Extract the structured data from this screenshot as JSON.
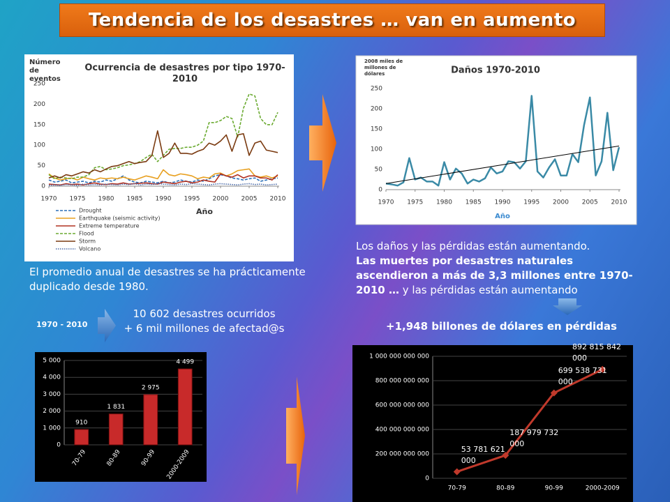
{
  "title": "Tendencia de los desastres … van en aumento",
  "texts": {
    "average": "El promedio anual de desastres se ha prácticamente duplicado desde 1980.",
    "period": "1970 - 2010",
    "count_line1": "10 602 desastres ocurridos",
    "count_line2": "+ 6 mil millones de afectad@s",
    "damages_line1": "Los daños y las pérdidas están aumentando.",
    "damages_bold": "Las muertes por desastres naturales ascendieron a más de 3,3 millones entre 1970-2010 …",
    "damages_tail": " y las pérdidas están aumentando",
    "losses": "+1,948 billones de dólares en pérdidas"
  },
  "chart_data": [
    {
      "type": "line",
      "title": "Ocurrencia de desastres por tipo 1970-2010",
      "y_label": "Número de eventos",
      "x_label": "Año",
      "x": [
        1970,
        1971,
        1972,
        1973,
        1974,
        1975,
        1976,
        1977,
        1978,
        1979,
        1980,
        1981,
        1982,
        1983,
        1984,
        1985,
        1986,
        1987,
        1988,
        1989,
        1990,
        1991,
        1992,
        1993,
        1994,
        1995,
        1996,
        1997,
        1998,
        1999,
        2000,
        2001,
        2002,
        2003,
        2004,
        2005,
        2006,
        2007,
        2008,
        2009,
        2010
      ],
      "xlim": [
        1970,
        2010
      ],
      "xticks": [
        1970,
        1975,
        1980,
        1985,
        1990,
        1995,
        2000,
        2005,
        2010
      ],
      "ylim": [
        0,
        250
      ],
      "yticks": [
        0,
        50,
        100,
        150,
        200,
        250
      ],
      "grid": false,
      "series": [
        {
          "name": "Drought",
          "color": "#2a6fb8",
          "style": "dashed",
          "values": [
            15,
            10,
            12,
            15,
            8,
            10,
            12,
            8,
            12,
            10,
            15,
            12,
            18,
            25,
            15,
            10,
            8,
            12,
            10,
            8,
            12,
            8,
            10,
            15,
            12,
            10,
            15,
            12,
            18,
            25,
            28,
            25,
            20,
            18,
            15,
            18,
            20,
            12,
            15,
            18,
            20
          ]
        },
        {
          "name": "Earthquake (seismic activity)",
          "color": "#e8a020",
          "style": "solid",
          "values": [
            30,
            20,
            15,
            18,
            20,
            15,
            22,
            18,
            15,
            20,
            18,
            20,
            18,
            22,
            18,
            15,
            20,
            25,
            22,
            18,
            40,
            28,
            25,
            30,
            28,
            25,
            18,
            22,
            20,
            30,
            32,
            25,
            30,
            38,
            40,
            42,
            25,
            22,
            25,
            20,
            25
          ]
        },
        {
          "name": "Extreme temperature",
          "color": "#b03020",
          "style": "solid",
          "values": [
            5,
            4,
            3,
            6,
            4,
            5,
            3,
            6,
            8,
            5,
            4,
            6,
            5,
            8,
            5,
            6,
            7,
            8,
            6,
            5,
            10,
            8,
            6,
            10,
            12,
            8,
            10,
            15,
            12,
            10,
            30,
            25,
            22,
            28,
            20,
            25,
            25,
            20,
            20,
            15,
            28
          ]
        },
        {
          "name": "Flood",
          "color": "#6aaa30",
          "style": "dashed",
          "values": [
            28,
            18,
            22,
            20,
            18,
            22,
            22,
            28,
            45,
            48,
            40,
            42,
            45,
            50,
            52,
            55,
            60,
            70,
            78,
            60,
            75,
            90,
            92,
            92,
            95,
            95,
            100,
            110,
            155,
            155,
            160,
            170,
            165,
            120,
            190,
            225,
            220,
            165,
            150,
            150,
            180
          ]
        },
        {
          "name": "Storm",
          "color": "#7a3a10",
          "style": "solid",
          "values": [
            20,
            25,
            20,
            28,
            25,
            30,
            35,
            32,
            40,
            35,
            42,
            48,
            50,
            55,
            60,
            55,
            58,
            60,
            75,
            135,
            70,
            80,
            105,
            80,
            80,
            78,
            85,
            90,
            105,
            100,
            110,
            125,
            85,
            125,
            128,
            75,
            105,
            110,
            88,
            85,
            82
          ]
        },
        {
          "name": "Volcano",
          "color": "#4a6aa8",
          "style": "dotted",
          "values": [
            2,
            3,
            2,
            4,
            3,
            2,
            5,
            3,
            4,
            3,
            5,
            4,
            3,
            5,
            4,
            6,
            3,
            5,
            4,
            6,
            5,
            4,
            3,
            5,
            4,
            6,
            5,
            4,
            3,
            5,
            6,
            5,
            4,
            3,
            5,
            6,
            4,
            5,
            3,
            4,
            5
          ]
        }
      ]
    },
    {
      "type": "line",
      "title": "Daños 1970-2010",
      "y_label": "2008 miles de millones de dólares",
      "x_label": "Año",
      "x": [
        1970,
        1971,
        1972,
        1973,
        1974,
        1975,
        1976,
        1977,
        1978,
        1979,
        1980,
        1981,
        1982,
        1983,
        1984,
        1985,
        1986,
        1987,
        1988,
        1989,
        1990,
        1991,
        1992,
        1993,
        1994,
        1995,
        1996,
        1997,
        1998,
        1999,
        2000,
        2001,
        2002,
        2003,
        2004,
        2005,
        2006,
        2007,
        2008,
        2009,
        2010
      ],
      "xlim": [
        1970,
        2010
      ],
      "xticks": [
        1970,
        1975,
        1980,
        1985,
        1990,
        1995,
        2000,
        2005,
        2010
      ],
      "ylim": [
        0,
        250
      ],
      "yticks": [
        0,
        50,
        100,
        150,
        200,
        250
      ],
      "grid": false,
      "color": "#3a8aa6",
      "values": [
        15,
        13,
        10,
        18,
        78,
        25,
        30,
        20,
        20,
        10,
        68,
        25,
        52,
        40,
        15,
        25,
        20,
        28,
        55,
        40,
        45,
        70,
        68,
        52,
        70,
        232,
        45,
        30,
        55,
        75,
        35,
        35,
        88,
        68,
        160,
        228,
        35,
        70,
        190,
        48,
        105
      ],
      "trendline": {
        "x": [
          1970,
          2010
        ],
        "values": [
          15,
          108
        ],
        "color": "#000000"
      }
    },
    {
      "type": "bar",
      "categories": [
        "70-79",
        "80-89",
        "90-99",
        "2000-2009"
      ],
      "color": "#c82a2a",
      "values": [
        910,
        1831,
        2975,
        4499
      ],
      "value_labels": [
        "910",
        "1 831",
        "2 975",
        "4 499"
      ],
      "ylim": [
        0,
        5000
      ],
      "yticks": [
        0,
        {
          "value": 1000,
          "label": "1 000"
        },
        {
          "value": 2000,
          "label": "2 000"
        },
        {
          "value": 3000,
          "label": "3 000"
        },
        {
          "value": 4000,
          "label": "4 000"
        },
        {
          "value": 5000,
          "label": "5 000"
        }
      ],
      "grid": true
    },
    {
      "type": "line",
      "categories": [
        "70-79",
        "80-89",
        "90-99",
        "2000-2009"
      ],
      "color": "#c0392b",
      "values": [
        53781621000,
        187979732000,
        699538731000,
        892815842000
      ],
      "value_labels": [
        "53 781 621 000",
        "187 979 732 000",
        "699 538 731 000",
        "892 815 842 000"
      ],
      "ylim": [
        0,
        1000000000000
      ],
      "yticks": [
        0,
        {
          "value": 200000000000,
          "label": "200 000 000 000"
        },
        {
          "value": 400000000000,
          "label": "400 000 000 000"
        },
        {
          "value": 600000000000,
          "label": "600 000 000 000"
        },
        {
          "value": 800000000000,
          "label": "800 000 000 000"
        },
        {
          "value": 1000000000000,
          "label": "1 000 000 000 000"
        }
      ],
      "grid": true
    }
  ]
}
